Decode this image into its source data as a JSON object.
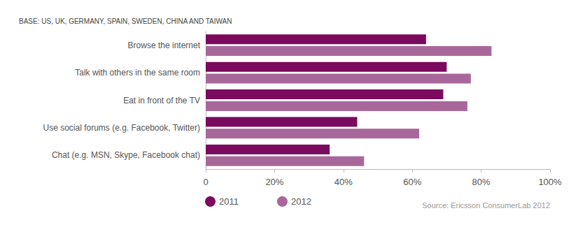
{
  "chart_data": {
    "type": "bar",
    "orientation": "horizontal",
    "title": "BASE: US, UK, GERMANY, SPAIN, SWEDEN, CHINA AND TAIWAN",
    "annotations": [
      "Source: Ericsson ConsumerLab 2012"
    ],
    "categories": [
      "Browse the internet",
      "Talk with others in the same room",
      "Eat in front of the TV",
      "Use social forums (e.g. Facebook, Twitter)",
      "Chat (e.g. MSN, Skype, Facebook chat)"
    ],
    "series": [
      {
        "name": "2011",
        "color": "#7b0a5e",
        "values": [
          64,
          70,
          69,
          44,
          36
        ]
      },
      {
        "name": "2012",
        "color": "#a8679a",
        "values": [
          83,
          77,
          76,
          62,
          46
        ]
      }
    ],
    "xlim": [
      0,
      100
    ],
    "xticks": [
      0,
      {
        "value": 20,
        "label": "20%"
      },
      {
        "value": 40,
        "label": "40%"
      },
      {
        "value": 60,
        "label": "60%"
      },
      {
        "value": 80,
        "label": "80%"
      },
      {
        "value": 100,
        "label": "100%"
      }
    ],
    "grid": false,
    "legend": "bottom-left"
  }
}
